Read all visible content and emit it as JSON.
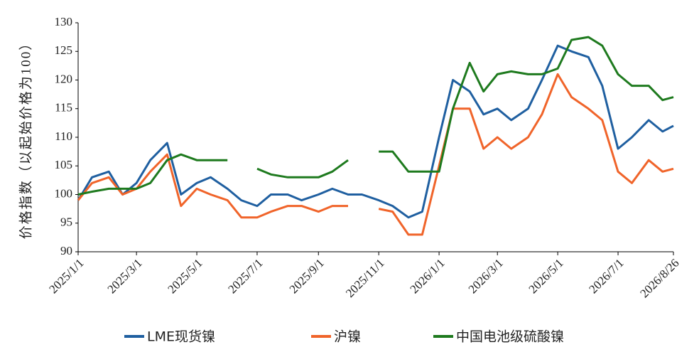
{
  "chart_data": {
    "type": "line",
    "y_label": "价格指数（以起始价格为100）",
    "x": [
      "2025/1/1",
      "2025/1/15",
      "2025/2/1",
      "2025/2/15",
      "2025/3/1",
      "2025/3/15",
      "2025/4/1",
      "2025/4/15",
      "2025/5/1",
      "2025/5/15",
      "2025/6/1",
      "2025/6/15",
      "2025/7/1",
      "2025/7/15",
      "2025/8/1",
      "2025/8/15",
      "2025/9/1",
      "2025/9/15",
      "2025/10/1",
      "2025/10/15",
      "2025/11/1",
      "2025/11/15",
      "2025/12/1",
      "2025/12/15",
      "2026/1/1",
      "2026/1/15",
      "2026/2/1",
      "2026/2/15",
      "2026/3/1",
      "2026/3/15",
      "2026/4/1",
      "2026/4/15",
      "2026/5/1",
      "2026/5/15",
      "2026/6/1",
      "2026/6/15",
      "2026/7/1",
      "2026/7/15",
      "2026/8/1",
      "2026/8/15",
      "2026/8/26"
    ],
    "series": [
      {
        "name": "LME现货镍",
        "color": "#1f5fa0",
        "values": [
          99,
          103,
          104,
          100,
          102,
          106,
          109,
          100,
          102,
          103,
          101,
          99,
          98,
          100,
          100,
          99,
          100,
          101,
          100,
          100,
          99,
          98,
          96,
          97,
          110,
          120,
          118,
          114,
          115,
          113,
          115,
          120,
          126,
          125,
          124,
          119,
          108,
          110,
          113,
          111,
          112
        ]
      },
      {
        "name": "沪镍",
        "color": "#f0642a",
        "values": [
          99,
          102,
          103,
          100,
          101,
          104,
          107,
          98,
          101,
          100,
          99,
          96,
          96,
          97,
          98,
          98,
          97,
          98,
          98,
          null,
          97.5,
          97,
          93,
          93,
          105,
          115,
          115,
          108,
          110,
          108,
          110,
          114,
          121,
          117,
          115,
          113,
          104,
          102,
          106,
          104,
          104.5
        ]
      },
      {
        "name": "中国电池级硫酸镍",
        "color": "#1e7a1e",
        "values": [
          100,
          100.5,
          101,
          101,
          101,
          102,
          106,
          107,
          106,
          106,
          106,
          null,
          104.5,
          103.5,
          103,
          103,
          103,
          104,
          106,
          null,
          107.5,
          107.5,
          104,
          104,
          104,
          115,
          123,
          118,
          121,
          121.5,
          121,
          121,
          122,
          127,
          127.5,
          126,
          121,
          119,
          119,
          116.5,
          117
        ]
      }
    ],
    "xlim": [
      "2025/1/1",
      "2026/8/26"
    ],
    "xticks": [
      "2025/1/1",
      "2025/3/1",
      "2025/5/1",
      "2025/7/1",
      "2025/9/1",
      "2025/11/1",
      "2026/1/1",
      "2026/3/1",
      "2026/5/1",
      "2026/7/1",
      "2026/8/26"
    ],
    "ylim": [
      90,
      130
    ],
    "yticks": [
      90,
      95,
      100,
      105,
      110,
      115,
      120,
      125,
      130
    ],
    "grid": false,
    "legend": "bottom"
  }
}
